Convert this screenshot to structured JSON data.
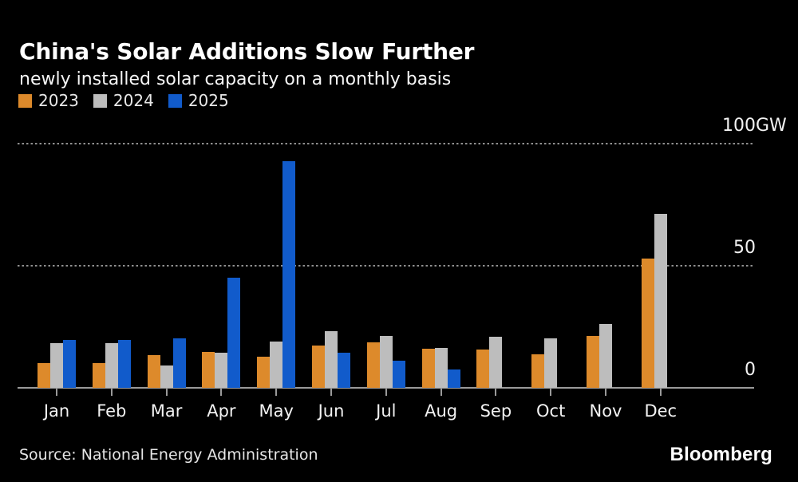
{
  "header": {
    "title": "China's Solar Additions Slow Further",
    "subtitle": "newly installed solar capacity on a monthly basis"
  },
  "legend": {
    "items": [
      {
        "label": "2023",
        "color": "#DD8A2B"
      },
      {
        "label": "2024",
        "color": "#BDBDBD"
      },
      {
        "label": "2025",
        "color": "#115BCB"
      }
    ]
  },
  "chart_data": {
    "type": "bar",
    "title": "China's Solar Additions Slow Further",
    "subtitle": "newly installed solar capacity on a monthly basis",
    "unit": "GW",
    "categories": [
      "Jan",
      "Feb",
      "Mar",
      "Apr",
      "May",
      "Jun",
      "Jul",
      "Aug",
      "Sep",
      "Oct",
      "Nov",
      "Dec"
    ],
    "series": [
      {
        "name": "2023",
        "color": "#DD8A2B",
        "values": [
          10.2,
          10.2,
          13.3,
          14.7,
          12.9,
          17.2,
          18.7,
          16.0,
          15.8,
          13.6,
          21.3,
          53.0
        ]
      },
      {
        "name": "2024",
        "color": "#BDBDBD",
        "values": [
          18.4,
          18.4,
          9.0,
          14.4,
          19.0,
          23.3,
          21.1,
          16.5,
          20.9,
          20.4,
          26.0,
          71.3
        ]
      },
      {
        "name": "2025",
        "color": "#115BCB",
        "values": [
          19.7,
          19.7,
          20.2,
          45.2,
          92.9,
          14.4,
          11.0,
          7.4,
          null,
          null,
          null,
          null
        ]
      }
    ],
    "ylim": [
      0,
      100
    ],
    "yticks": [
      {
        "value": 100,
        "label": "100",
        "unit": "GW"
      },
      {
        "value": 50,
        "label": "50",
        "unit": ""
      },
      {
        "value": 0,
        "label": "0",
        "unit": ""
      }
    ],
    "grid": "dotted horizontal gridlines",
    "legend_position": "top-left"
  },
  "footer": {
    "source": "Source: National Energy Administration",
    "logo": "Bloomberg"
  },
  "colors": {
    "background": "#000000",
    "text": "#FFFFFF",
    "axis": "#9A9A9A",
    "gridline": "#8F8F8F"
  }
}
